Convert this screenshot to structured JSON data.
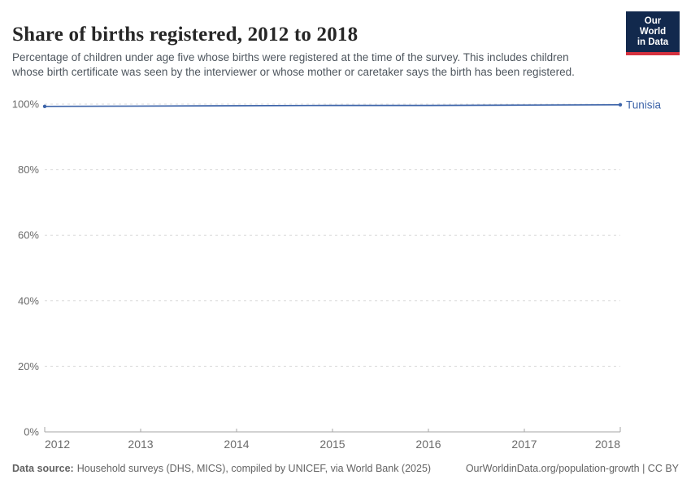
{
  "header": {
    "title": "Share of births registered, 2012 to 2018",
    "subtitle": "Percentage of children under age five whose births were registered at the time of the survey. This includes children whose birth certificate was seen by the interviewer or whose mother or caretaker says the birth has been registered.",
    "logo": {
      "line1": "Our World",
      "line2": "in Data"
    }
  },
  "colors": {
    "logo-bg": "#12294d",
    "logo-red": "#d5323f",
    "line-blue": "#3d64a9",
    "grid": "#dcdcdc",
    "axis": "#a6a6a6",
    "tick-label": "#6b6b6b"
  },
  "chart_data": {
    "type": "line",
    "title": "Share of births registered, 2012 to 2018",
    "x": [
      2012,
      2013,
      2014,
      2015,
      2016,
      2017,
      2018
    ],
    "xticks": [
      "2012",
      "2013",
      "2014",
      "2015",
      "2016",
      "2017",
      "2018"
    ],
    "series": [
      {
        "name": "Tunisia",
        "values": [
          99.3,
          99.4,
          99.5,
          99.6,
          99.6,
          99.7,
          99.8
        ],
        "color": "#3d64a9"
      }
    ],
    "ylabel": "",
    "xlabel": "",
    "ylim": [
      0,
      100
    ],
    "yticks": [
      "0%",
      "20%",
      "40%",
      "60%",
      "80%",
      "100%"
    ],
    "grid": "dashed-horizontal",
    "legend_position": "end-of-line-label",
    "end_markers": "dots-at-first-and-last-point"
  },
  "footer": {
    "source_label": "Data source:",
    "source_text": "Household surveys (DHS, MICS), compiled by UNICEF, via World Bank (2025)",
    "link_text": "OurWorldinData.org/population-growth | CC BY"
  }
}
